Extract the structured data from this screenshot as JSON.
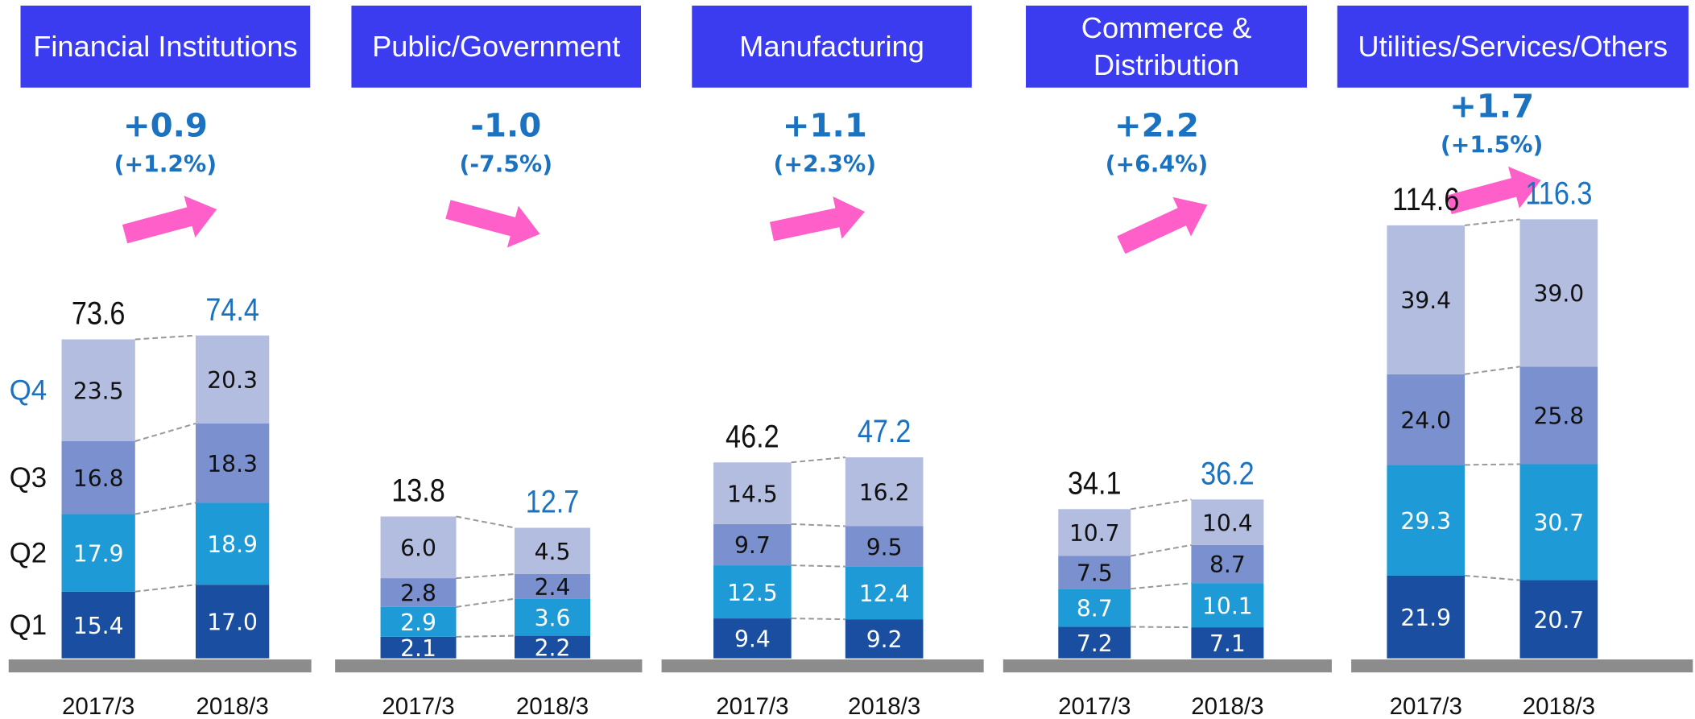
{
  "chart_data": [
    {
      "type": "bar",
      "stacked": true,
      "title": "Financial Institutions",
      "categories": [
        "2017/3",
        "2018/3"
      ],
      "series": [
        {
          "name": "Q1",
          "color": "#1a4ea0",
          "values": [
            15.4,
            17.0
          ],
          "value_labels": [
            "15.4",
            "17.0"
          ]
        },
        {
          "name": "Q2",
          "color": "#1e9ad6",
          "values": [
            17.9,
            18.9
          ],
          "value_labels": [
            "17.9",
            "18.9"
          ]
        },
        {
          "name": "Q3",
          "color": "#7b91cf",
          "values": [
            16.8,
            18.3
          ],
          "value_labels": [
            "16.8",
            "18.3"
          ]
        },
        {
          "name": "Q4",
          "color": "#b3bde0",
          "values": [
            23.5,
            20.3
          ],
          "value_labels": [
            "23.5",
            "20.3"
          ]
        }
      ],
      "totals": [
        73.6,
        74.4
      ],
      "change": "+0.9",
      "change_pct": "(+1.2%)",
      "ylim": [
        0,
        102
      ]
    },
    {
      "type": "bar",
      "stacked": true,
      "title": "Public/Government",
      "categories": [
        "2017/3",
        "2018/3"
      ],
      "series": [
        {
          "color": "#1a4ea0",
          "values": [
            2.1,
            2.2
          ],
          "value_labels": [
            "2.1",
            "2.2"
          ]
        },
        {
          "color": "#1e9ad6",
          "values": [
            2.9,
            3.6
          ],
          "value_labels": [
            "2.9",
            "3.6"
          ]
        },
        {
          "color": "#7b91cf",
          "values": [
            2.8,
            2.4
          ],
          "value_labels": [
            "2.8",
            "2.4"
          ]
        },
        {
          "color": "#b3bde0",
          "values": [
            6.0,
            4.5
          ],
          "value_labels": [
            "6.0",
            "4.5"
          ]
        }
      ],
      "totals": [
        13.8,
        12.7
      ],
      "change": "-1.0",
      "change_pct": "(-7.5%)",
      "ylim": [
        0,
        43
      ]
    },
    {
      "type": "bar",
      "stacked": true,
      "title": "Manufacturing",
      "categories": [
        "2017/3",
        "2018/3"
      ],
      "series": [
        {
          "color": "#1a4ea0",
          "values": [
            9.4,
            9.2
          ],
          "value_labels": [
            "9.4",
            "9.2"
          ]
        },
        {
          "color": "#1e9ad6",
          "values": [
            12.5,
            12.4
          ],
          "value_labels": [
            "12.5",
            "12.4"
          ]
        },
        {
          "color": "#7b91cf",
          "values": [
            9.7,
            9.5
          ],
          "value_labels": [
            "9.7",
            "9.5"
          ]
        },
        {
          "color": "#b3bde0",
          "values": [
            14.5,
            16.2
          ],
          "value_labels": [
            "14.5",
            "16.2"
          ]
        }
      ],
      "totals": [
        46.2,
        47.2
      ],
      "change": "+1.1",
      "change_pct": "(+2.3%)",
      "ylim": [
        0,
        104
      ]
    },
    {
      "type": "bar",
      "stacked": true,
      "title": "Commerce & Distribution",
      "categories": [
        "2017/3",
        "2018/3"
      ],
      "series": [
        {
          "color": "#1a4ea0",
          "values": [
            7.2,
            7.1
          ],
          "value_labels": [
            "7.2",
            "7.1"
          ]
        },
        {
          "color": "#1e9ad6",
          "values": [
            8.7,
            10.1
          ],
          "value_labels": [
            "8.7",
            "10.1"
          ]
        },
        {
          "color": "#7b91cf",
          "values": [
            7.5,
            8.7
          ],
          "value_labels": [
            "7.5",
            "8.7"
          ]
        },
        {
          "color": "#b3bde0",
          "values": [
            10.7,
            10.4
          ],
          "value_labels": [
            "10.7",
            "10.4"
          ]
        }
      ],
      "totals": [
        34.1,
        36.2
      ],
      "change": "+2.2",
      "change_pct": "(+6.4%)",
      "ylim": [
        0,
        101
      ]
    },
    {
      "type": "bar",
      "stacked": true,
      "title": "Utilities/Services/Others",
      "categories": [
        "2017/3",
        "2018/3"
      ],
      "series": [
        {
          "color": "#1a4ea0",
          "values": [
            21.9,
            20.7
          ],
          "value_labels": [
            "21.9",
            "20.7"
          ]
        },
        {
          "color": "#1e9ad6",
          "values": [
            29.3,
            30.7
          ],
          "value_labels": [
            "29.3",
            "30.7"
          ]
        },
        {
          "color": "#7b91cf",
          "values": [
            24.0,
            25.8
          ],
          "value_labels": [
            "24.0",
            "25.8"
          ]
        },
        {
          "color": "#b3bde0",
          "values": [
            39.4,
            39.0
          ],
          "value_labels": [
            "39.4",
            "39.0"
          ]
        }
      ],
      "totals": [
        114.6,
        116.3
      ],
      "change": "+1.7",
      "change_pct": "(+1.5%)",
      "ylim": [
        0,
        117
      ]
    }
  ]
}
